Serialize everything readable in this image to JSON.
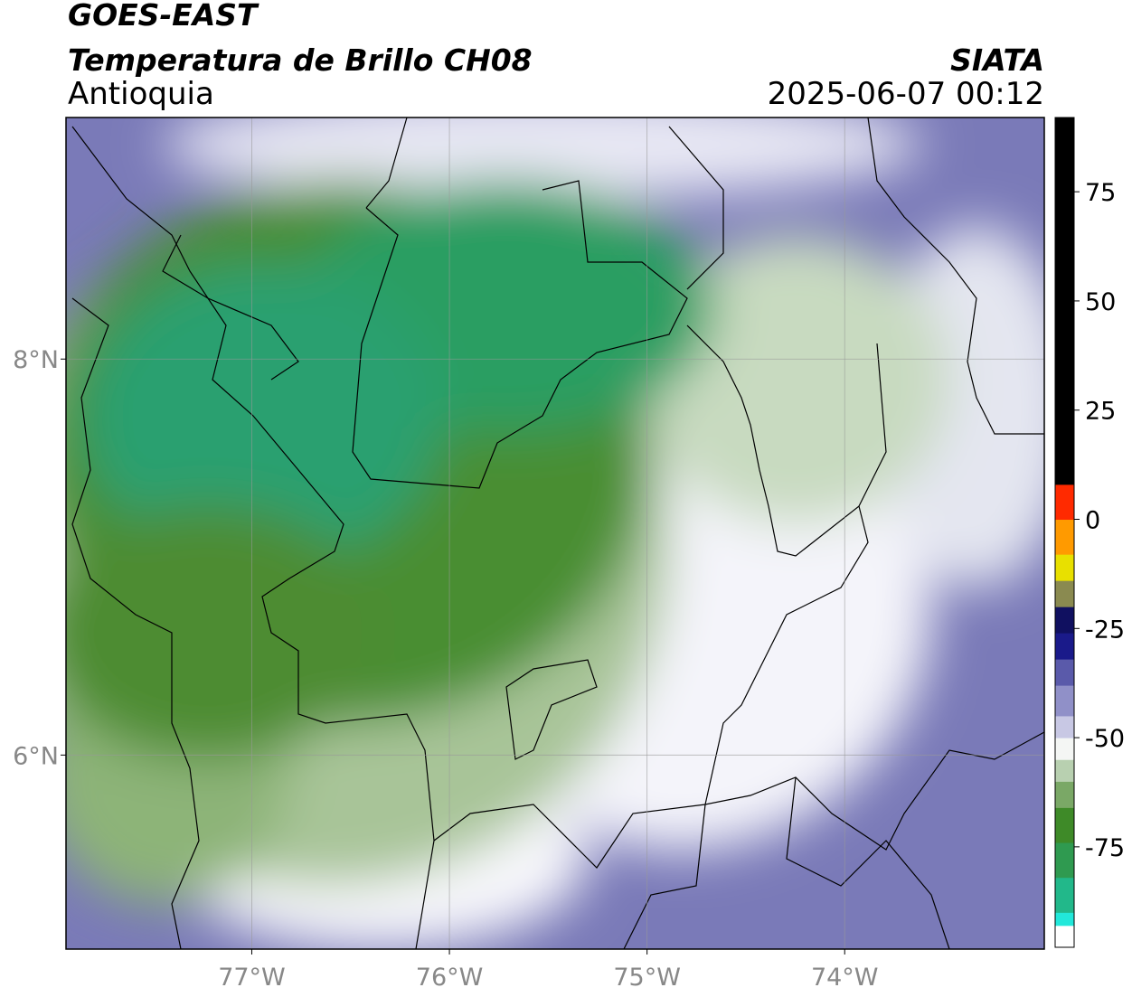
{
  "header": {
    "title": "GOES-EAST",
    "subtitle": "Temperatura de Brillo CH08",
    "region": "Antioquia",
    "source": "SIATA",
    "datetime": "2025-06-07 00:12"
  },
  "map": {
    "xlim": [
      -77.94,
      -72.99
    ],
    "ylim": [
      5.02,
      9.22
    ],
    "xticks": [
      {
        "value": -77,
        "label": "77°W"
      },
      {
        "value": -76,
        "label": "76°W"
      },
      {
        "value": -75,
        "label": "75°W"
      },
      {
        "value": -74,
        "label": "74°W"
      }
    ],
    "yticks": [
      {
        "value": 8,
        "label": "8°N"
      },
      {
        "value": 6,
        "label": "6°N"
      }
    ],
    "grid": true
  },
  "colorbar": {
    "lim": [
      -98,
      92
    ],
    "ticks": [
      75,
      50,
      25,
      0,
      -25,
      -50,
      -75
    ],
    "segments": [
      {
        "from": -98,
        "to": -93,
        "color": "#ffffff"
      },
      {
        "from": -93,
        "to": -90,
        "color": "#22e8da"
      },
      {
        "from": -90,
        "to": -82,
        "color": "#22b88a"
      },
      {
        "from": -82,
        "to": -74,
        "color": "#2f9a50"
      },
      {
        "from": -74,
        "to": -66,
        "color": "#3e8a28"
      },
      {
        "from": -66,
        "to": -60,
        "color": "#7aa866"
      },
      {
        "from": -60,
        "to": -55,
        "color": "#b8d0b0"
      },
      {
        "from": -55,
        "to": -50,
        "color": "#f4f6f4"
      },
      {
        "from": -50,
        "to": -45,
        "color": "#c8c8e4"
      },
      {
        "from": -45,
        "to": -38,
        "color": "#9090c8"
      },
      {
        "from": -38,
        "to": -32,
        "color": "#5a5aaa"
      },
      {
        "from": -32,
        "to": -26,
        "color": "#1a1a8a"
      },
      {
        "from": -26,
        "to": -20,
        "color": "#101060"
      },
      {
        "from": -20,
        "to": -14,
        "color": "#8a8a50"
      },
      {
        "from": -14,
        "to": -8,
        "color": "#e8e000"
      },
      {
        "from": -8,
        "to": 0,
        "color": "#ff9a00"
      },
      {
        "from": 0,
        "to": 8,
        "color": "#ff2a00"
      },
      {
        "from": 8,
        "to": 92,
        "color": "#000000"
      }
    ]
  }
}
